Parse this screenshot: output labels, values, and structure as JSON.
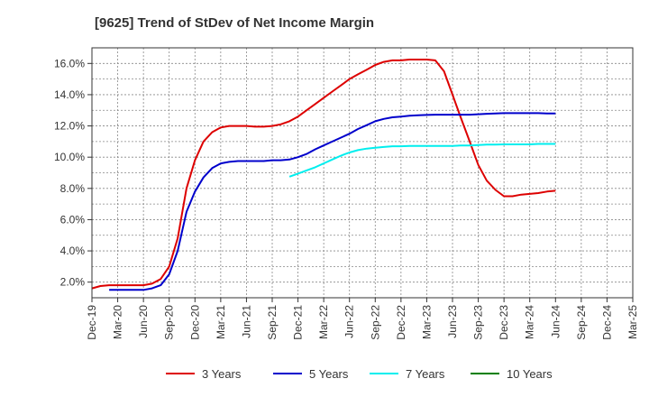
{
  "chart_data": {
    "type": "line",
    "title": "[9625]  Trend of StDev of Net Income Margin",
    "xlabel": "",
    "ylabel": "",
    "x_ticks": [
      "Dec-19",
      "Mar-20",
      "Jun-20",
      "Sep-20",
      "Dec-20",
      "Mar-21",
      "Jun-21",
      "Sep-21",
      "Dec-21",
      "Mar-22",
      "Jun-22",
      "Sep-22",
      "Dec-22",
      "Mar-23",
      "Jun-23",
      "Sep-23",
      "Dec-23",
      "Mar-24",
      "Jun-24",
      "Sep-24",
      "Dec-24",
      "Mar-25"
    ],
    "y_ticks": [
      "2.0%",
      "4.0%",
      "6.0%",
      "8.0%",
      "10.0%",
      "12.0%",
      "14.0%",
      "16.0%"
    ],
    "ylim": [
      1.0,
      17.0
    ],
    "grid": true,
    "legend_position": "bottom",
    "series": [
      {
        "name": "3 Years",
        "color": "#dd0000",
        "values": [
          [
            0,
            1.6
          ],
          [
            0.33,
            1.75
          ],
          [
            0.67,
            1.8
          ],
          [
            1,
            1.8
          ],
          [
            1.33,
            1.8
          ],
          [
            1.67,
            1.8
          ],
          [
            2,
            1.8
          ],
          [
            2.33,
            1.9
          ],
          [
            2.67,
            2.2
          ],
          [
            3,
            3.0
          ],
          [
            3.33,
            4.8
          ],
          [
            3.67,
            8.0
          ],
          [
            4,
            9.8
          ],
          [
            4.33,
            11.0
          ],
          [
            4.67,
            11.6
          ],
          [
            5,
            11.9
          ],
          [
            5.33,
            12.0
          ],
          [
            5.67,
            12.0
          ],
          [
            6,
            12.0
          ],
          [
            6.33,
            11.95
          ],
          [
            6.67,
            11.95
          ],
          [
            7,
            12.0
          ],
          [
            7.33,
            12.1
          ],
          [
            7.67,
            12.3
          ],
          [
            8,
            12.6
          ],
          [
            8.33,
            13.0
          ],
          [
            8.67,
            13.4
          ],
          [
            9,
            13.8
          ],
          [
            9.33,
            14.2
          ],
          [
            9.67,
            14.6
          ],
          [
            10,
            15.0
          ],
          [
            10.33,
            15.3
          ],
          [
            10.67,
            15.6
          ],
          [
            11,
            15.9
          ],
          [
            11.33,
            16.1
          ],
          [
            11.67,
            16.2
          ],
          [
            12,
            16.2
          ],
          [
            12.33,
            16.25
          ],
          [
            12.67,
            16.25
          ],
          [
            13,
            16.25
          ],
          [
            13.33,
            16.2
          ],
          [
            13.67,
            15.5
          ],
          [
            14,
            14.0
          ],
          [
            14.33,
            12.5
          ],
          [
            14.67,
            11.0
          ],
          [
            15,
            9.5
          ],
          [
            15.33,
            8.5
          ],
          [
            15.67,
            7.9
          ],
          [
            16,
            7.5
          ],
          [
            16.33,
            7.5
          ],
          [
            16.67,
            7.6
          ],
          [
            17,
            7.65
          ],
          [
            17.33,
            7.7
          ],
          [
            17.67,
            7.8
          ],
          [
            18,
            7.85
          ]
        ]
      },
      {
        "name": "5 Years",
        "color": "#0000cc",
        "values": [
          [
            0.67,
            1.5
          ],
          [
            1,
            1.5
          ],
          [
            1.33,
            1.5
          ],
          [
            1.67,
            1.5
          ],
          [
            2,
            1.5
          ],
          [
            2.33,
            1.6
          ],
          [
            2.67,
            1.8
          ],
          [
            3,
            2.5
          ],
          [
            3.33,
            4.0
          ],
          [
            3.67,
            6.5
          ],
          [
            4,
            7.8
          ],
          [
            4.33,
            8.7
          ],
          [
            4.67,
            9.3
          ],
          [
            5,
            9.6
          ],
          [
            5.33,
            9.7
          ],
          [
            5.67,
            9.75
          ],
          [
            6,
            9.75
          ],
          [
            6.33,
            9.75
          ],
          [
            6.67,
            9.75
          ],
          [
            7,
            9.8
          ],
          [
            7.33,
            9.8
          ],
          [
            7.67,
            9.85
          ],
          [
            8,
            10.0
          ],
          [
            8.33,
            10.2
          ],
          [
            8.67,
            10.5
          ],
          [
            9,
            10.75
          ],
          [
            9.33,
            11.0
          ],
          [
            9.67,
            11.25
          ],
          [
            10,
            11.5
          ],
          [
            10.33,
            11.8
          ],
          [
            10.67,
            12.05
          ],
          [
            11,
            12.3
          ],
          [
            11.33,
            12.45
          ],
          [
            11.67,
            12.55
          ],
          [
            12,
            12.6
          ],
          [
            12.33,
            12.65
          ],
          [
            12.67,
            12.68
          ],
          [
            13,
            12.7
          ],
          [
            13.33,
            12.72
          ],
          [
            13.67,
            12.72
          ],
          [
            14,
            12.72
          ],
          [
            14.33,
            12.72
          ],
          [
            14.67,
            12.72
          ],
          [
            15,
            12.75
          ],
          [
            15.33,
            12.78
          ],
          [
            15.67,
            12.8
          ],
          [
            16,
            12.82
          ],
          [
            16.33,
            12.82
          ],
          [
            16.67,
            12.82
          ],
          [
            17,
            12.82
          ],
          [
            17.33,
            12.82
          ],
          [
            17.67,
            12.8
          ],
          [
            18,
            12.8
          ]
        ]
      },
      {
        "name": "7 Years",
        "color": "#00eeee",
        "values": [
          [
            7.67,
            8.75
          ],
          [
            8,
            8.95
          ],
          [
            8.33,
            9.15
          ],
          [
            8.67,
            9.35
          ],
          [
            9,
            9.6
          ],
          [
            9.33,
            9.85
          ],
          [
            9.67,
            10.1
          ],
          [
            10,
            10.3
          ],
          [
            10.33,
            10.45
          ],
          [
            10.67,
            10.55
          ],
          [
            11,
            10.6
          ],
          [
            11.33,
            10.65
          ],
          [
            11.67,
            10.7
          ],
          [
            12,
            10.7
          ],
          [
            12.33,
            10.72
          ],
          [
            12.67,
            10.72
          ],
          [
            13,
            10.72
          ],
          [
            13.33,
            10.72
          ],
          [
            13.67,
            10.72
          ],
          [
            14,
            10.72
          ],
          [
            14.33,
            10.75
          ],
          [
            14.67,
            10.75
          ],
          [
            15,
            10.78
          ],
          [
            15.33,
            10.8
          ],
          [
            15.67,
            10.8
          ],
          [
            16,
            10.82
          ],
          [
            16.33,
            10.82
          ],
          [
            16.67,
            10.82
          ],
          [
            17,
            10.82
          ],
          [
            17.33,
            10.85
          ],
          [
            17.67,
            10.85
          ],
          [
            18,
            10.85
          ]
        ]
      },
      {
        "name": "10 Years",
        "color": "#008000",
        "values": []
      }
    ]
  }
}
